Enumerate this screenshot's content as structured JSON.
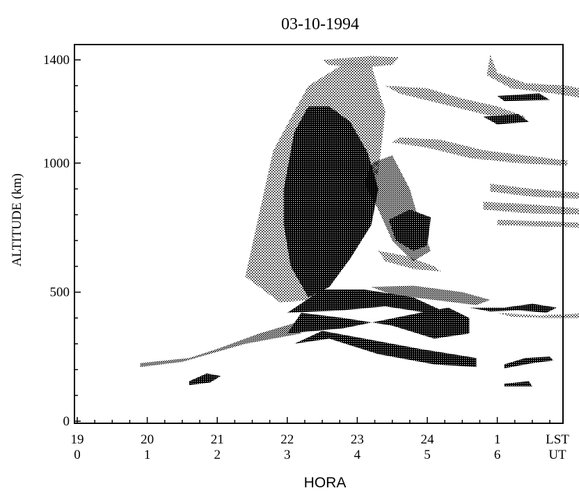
{
  "chart_data": {
    "type": "heatmap",
    "title": "03-10-1994",
    "xlabel": "HORA",
    "ylabel": "ALTITUDE (km)",
    "ylim": [
      0,
      1400
    ],
    "xlim": [
      19,
      26.5
    ],
    "y_ticks": [
      0,
      500,
      1000,
      1400
    ],
    "x_ticks": [
      {
        "lst": "19",
        "ut": "0",
        "x": 19
      },
      {
        "lst": "20",
        "ut": "1",
        "x": 20
      },
      {
        "lst": "21",
        "ut": "2",
        "x": 21
      },
      {
        "lst": "22",
        "ut": "3",
        "x": 22
      },
      {
        "lst": "23",
        "ut": "4",
        "x": 23
      },
      {
        "lst": "24",
        "ut": "5",
        "x": 24
      },
      {
        "lst": "1",
        "ut": "6",
        "x": 25
      }
    ],
    "x_tick_end": {
      "lst": "LST",
      "ut": "UT"
    },
    "pattern_color": "#000000",
    "regions": [
      {
        "density": 0.7,
        "points": [
          [
            19.9,
            225
          ],
          [
            20.6,
            245
          ],
          [
            21.0,
            280
          ],
          [
            21.6,
            340
          ],
          [
            22.1,
            380
          ],
          [
            22.2,
            340
          ],
          [
            21.4,
            300
          ],
          [
            20.5,
            230
          ],
          [
            19.9,
            210
          ]
        ]
      },
      {
        "density": 0.85,
        "points": [
          [
            20.6,
            140
          ],
          [
            20.9,
            150
          ],
          [
            21.05,
            175
          ],
          [
            20.85,
            185
          ],
          [
            20.6,
            155
          ]
        ]
      },
      {
        "density": 0.9,
        "points": [
          [
            22.0,
            340
          ],
          [
            22.8,
            360
          ],
          [
            23.9,
            420
          ],
          [
            24.3,
            440
          ],
          [
            24.6,
            400
          ],
          [
            24.6,
            340
          ],
          [
            24.1,
            320
          ],
          [
            23.5,
            370
          ],
          [
            22.8,
            400
          ],
          [
            22.2,
            420
          ]
        ]
      },
      {
        "density": 0.8,
        "points": [
          [
            22.1,
            300
          ],
          [
            22.6,
            320
          ],
          [
            23.3,
            260
          ],
          [
            24.1,
            220
          ],
          [
            24.7,
            210
          ],
          [
            24.7,
            245
          ],
          [
            23.9,
            280
          ],
          [
            23.1,
            320
          ],
          [
            22.5,
            350
          ]
        ]
      },
      {
        "density": 0.9,
        "points": [
          [
            22.0,
            420
          ],
          [
            22.5,
            510
          ],
          [
            23.1,
            510
          ],
          [
            23.8,
            480
          ],
          [
            24.2,
            430
          ],
          [
            24.0,
            420
          ],
          [
            23.4,
            445
          ],
          [
            22.8,
            430
          ]
        ]
      },
      {
        "density": 0.65,
        "points": [
          [
            23.2,
            520
          ],
          [
            23.8,
            525
          ],
          [
            24.5,
            500
          ],
          [
            24.9,
            470
          ],
          [
            24.7,
            450
          ],
          [
            24.1,
            470
          ],
          [
            23.5,
            490
          ]
        ]
      },
      {
        "density": 0.85,
        "points": [
          [
            24.6,
            440
          ],
          [
            25.1,
            440
          ],
          [
            25.5,
            455
          ],
          [
            25.85,
            440
          ],
          [
            25.7,
            420
          ],
          [
            25.3,
            430
          ],
          [
            24.9,
            425
          ]
        ]
      },
      {
        "density": 0.55,
        "points": [
          [
            25.0,
            420
          ],
          [
            25.6,
            410
          ],
          [
            26.4,
            420
          ],
          [
            26.3,
            400
          ],
          [
            25.7,
            400
          ],
          [
            25.2,
            405
          ]
        ]
      },
      {
        "density": 0.85,
        "points": [
          [
            25.1,
            205
          ],
          [
            25.5,
            225
          ],
          [
            25.8,
            235
          ],
          [
            25.75,
            250
          ],
          [
            25.4,
            245
          ],
          [
            25.1,
            220
          ]
        ]
      },
      {
        "density": 0.85,
        "points": [
          [
            25.1,
            145
          ],
          [
            25.45,
            155
          ],
          [
            25.5,
            135
          ],
          [
            25.1,
            135
          ]
        ]
      },
      {
        "density": 0.55,
        "points": [
          [
            21.4,
            560
          ],
          [
            21.8,
            1050
          ],
          [
            22.3,
            1300
          ],
          [
            22.9,
            1400
          ],
          [
            23.2,
            1380
          ],
          [
            23.4,
            1200
          ],
          [
            23.3,
            960
          ],
          [
            23.0,
            760
          ],
          [
            22.7,
            560
          ],
          [
            22.3,
            470
          ],
          [
            21.9,
            460
          ]
        ]
      },
      {
        "density": 0.9,
        "points": [
          [
            21.95,
            900
          ],
          [
            22.1,
            1120
          ],
          [
            22.3,
            1220
          ],
          [
            22.6,
            1220
          ],
          [
            22.9,
            1160
          ],
          [
            23.15,
            1040
          ],
          [
            23.3,
            900
          ],
          [
            23.2,
            760
          ],
          [
            22.9,
            630
          ],
          [
            22.6,
            520
          ],
          [
            22.3,
            480
          ],
          [
            22.05,
            600
          ],
          [
            21.95,
            760
          ]
        ]
      },
      {
        "density": 0.7,
        "points": [
          [
            23.2,
            1000
          ],
          [
            23.5,
            1030
          ],
          [
            23.75,
            900
          ],
          [
            23.9,
            760
          ],
          [
            24.05,
            660
          ],
          [
            23.8,
            620
          ],
          [
            23.5,
            700
          ],
          [
            23.3,
            820
          ],
          [
            23.1,
            920
          ]
        ]
      },
      {
        "density": 0.85,
        "points": [
          [
            23.45,
            780
          ],
          [
            23.75,
            820
          ],
          [
            24.05,
            790
          ],
          [
            24.0,
            680
          ],
          [
            23.8,
            660
          ],
          [
            23.55,
            700
          ]
        ]
      },
      {
        "density": 0.55,
        "points": [
          [
            22.5,
            1400
          ],
          [
            23.2,
            1415
          ],
          [
            23.6,
            1410
          ],
          [
            23.5,
            1380
          ],
          [
            23.0,
            1370
          ],
          [
            22.6,
            1380
          ]
        ]
      },
      {
        "density": 0.55,
        "points": [
          [
            23.4,
            1300
          ],
          [
            24.0,
            1290
          ],
          [
            24.5,
            1250
          ],
          [
            25.0,
            1220
          ],
          [
            25.4,
            1180
          ],
          [
            25.3,
            1160
          ],
          [
            24.8,
            1190
          ],
          [
            24.2,
            1230
          ],
          [
            23.6,
            1270
          ]
        ]
      },
      {
        "density": 0.9,
        "points": [
          [
            24.8,
            1180
          ],
          [
            25.3,
            1190
          ],
          [
            25.45,
            1160
          ],
          [
            25.0,
            1150
          ]
        ]
      },
      {
        "density": 0.9,
        "points": [
          [
            25.0,
            1260
          ],
          [
            25.6,
            1270
          ],
          [
            25.75,
            1245
          ],
          [
            25.1,
            1240
          ]
        ]
      },
      {
        "density": 0.55,
        "points": [
          [
            24.9,
            1420
          ],
          [
            25.0,
            1350
          ],
          [
            25.4,
            1310
          ],
          [
            26.0,
            1300
          ],
          [
            26.5,
            1270
          ],
          [
            26.5,
            1240
          ],
          [
            25.8,
            1270
          ],
          [
            25.2,
            1290
          ],
          [
            24.85,
            1340
          ]
        ]
      },
      {
        "density": 0.45,
        "points": [
          [
            23.6,
            1100
          ],
          [
            24.2,
            1090
          ],
          [
            24.8,
            1050
          ],
          [
            25.4,
            1030
          ],
          [
            26.0,
            1010
          ],
          [
            26.0,
            990
          ],
          [
            25.3,
            1000
          ],
          [
            24.6,
            1020
          ],
          [
            24.0,
            1060
          ],
          [
            23.5,
            1080
          ]
        ]
      },
      {
        "density": 0.45,
        "points": [
          [
            24.9,
            920
          ],
          [
            25.5,
            900
          ],
          [
            26.4,
            880
          ],
          [
            26.4,
            860
          ],
          [
            25.5,
            870
          ],
          [
            24.9,
            890
          ]
        ]
      },
      {
        "density": 0.45,
        "points": [
          [
            24.8,
            850
          ],
          [
            25.5,
            840
          ],
          [
            26.35,
            820
          ],
          [
            26.35,
            800
          ],
          [
            25.5,
            805
          ],
          [
            24.8,
            820
          ]
        ]
      },
      {
        "density": 0.45,
        "points": [
          [
            25.0,
            780
          ],
          [
            25.6,
            775
          ],
          [
            26.2,
            770
          ],
          [
            26.2,
            750
          ],
          [
            25.6,
            755
          ],
          [
            25.0,
            760
          ]
        ]
      },
      {
        "density": 0.4,
        "points": [
          [
            23.3,
            660
          ],
          [
            23.7,
            640
          ],
          [
            24.1,
            600
          ],
          [
            24.2,
            580
          ],
          [
            23.8,
            590
          ],
          [
            23.4,
            620
          ]
        ]
      }
    ]
  }
}
